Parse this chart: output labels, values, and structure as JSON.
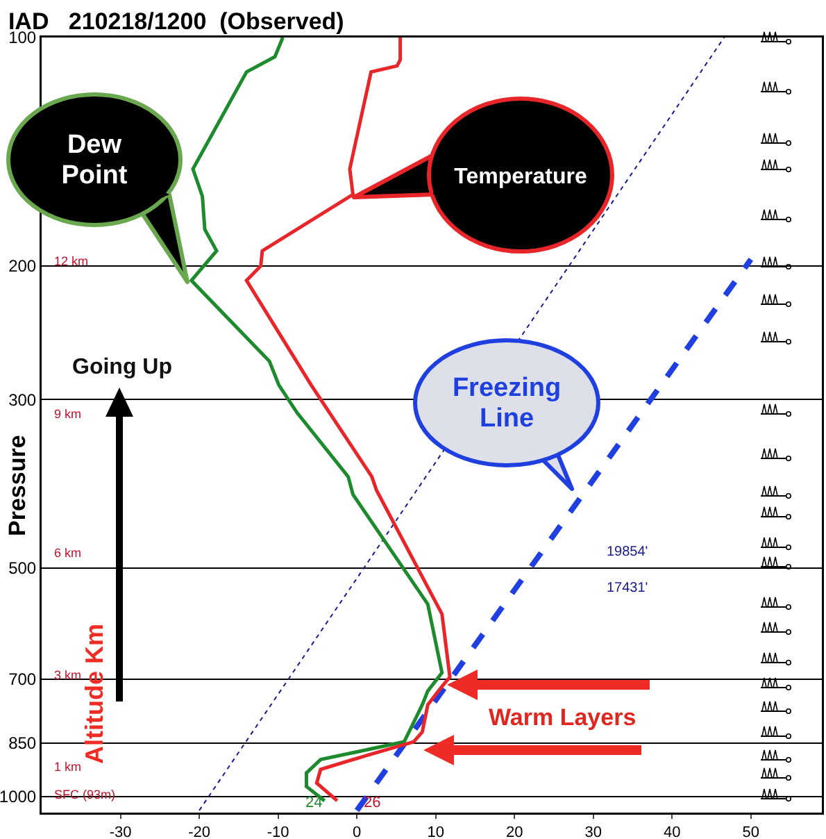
{
  "chart_data": {
    "type": "line",
    "title": "IAD   210218/1200  (Observed)",
    "ylabel": "Pressure",
    "xlim": [
      -40,
      59
    ],
    "xticks": [
      -30,
      -20,
      -10,
      0,
      10,
      20,
      30,
      40,
      50
    ],
    "ylim": [
      1050,
      100
    ],
    "yticks": [
      100,
      200,
      300,
      500,
      700,
      850,
      1000
    ],
    "log": "y",
    "grid": "y",
    "series": [
      {
        "name": "Temperature",
        "color": "#e8262a",
        "line_style": "solid",
        "x": [
          5.5,
          5.5,
          5.1,
          1.8,
          -0.9,
          -0.5,
          -12.0,
          -12.2,
          -14.0,
          -5.8,
          1.9,
          2.5,
          10.8,
          11.8,
          10.8,
          9.0,
          8.3,
          7.2,
          1.2,
          -4.6,
          -5.1,
          -2.5
        ],
        "values": [
          100,
          107,
          109,
          111,
          149,
          161,
          191,
          200,
          209,
          287,
          379,
          395,
          575,
          696,
          716,
          757,
          822,
          847,
          883,
          921,
          960,
          1013
        ]
      },
      {
        "name": "Dew Point",
        "color": "#1e8a2e",
        "line_style": "solid",
        "x": [
          -9.4,
          -10.4,
          -14.0,
          -20.8,
          -19.6,
          -19.3,
          -17.8,
          -21.0,
          -11.1,
          -9.9,
          -7.6,
          -1.1,
          -0.5,
          9.0,
          10.8,
          9.0,
          8.3,
          6.0,
          -4.6,
          -6.4,
          -6.4,
          -4.1
        ],
        "values": [
          100,
          106,
          111,
          149,
          162,
          179,
          191,
          209,
          267,
          287,
          312,
          379,
          400,
          558,
          687,
          726,
          757,
          847,
          894,
          931,
          970,
          1013
        ]
      },
      {
        "name": "Freezing Line",
        "color": "#1f3fe0",
        "line_style": "dashed",
        "x": [
          0,
          50
        ],
        "values": [
          1043,
          196
        ]
      },
      {
        "color": "#1a1a8c",
        "line_style": "dotted",
        "x": [
          -20,
          46.6
        ],
        "values": [
          1043,
          100
        ]
      }
    ],
    "annotations": [
      "Going Up",
      "Altitude Km",
      "Warm Layers",
      "19854'",
      "17431'",
      "12 km",
      "9 km",
      "6 km",
      "3 km",
      "1 km",
      "SFC (93m)",
      "24",
      "26"
    ]
  }
}
